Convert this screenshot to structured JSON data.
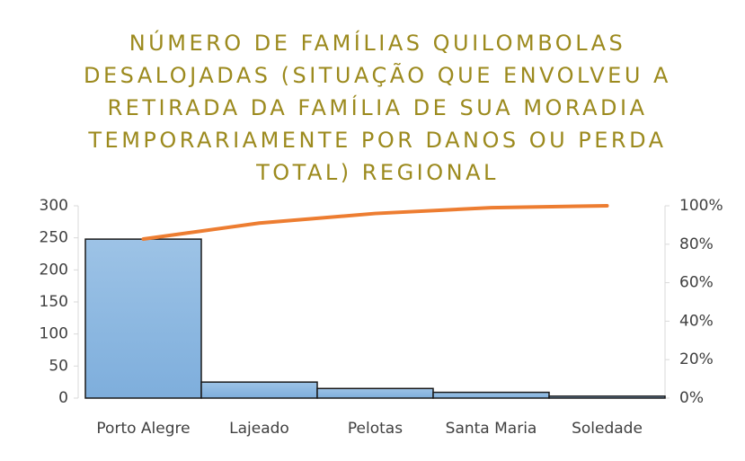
{
  "chart_data": {
    "type": "pareto",
    "title": "NÚMERO DE FAMÍLIAS QUILOMBOLAS DESALOJADAS (SITUAÇÃO QUE ENVOLVEU A RETIRADA DA FAMÍLIA DE SUA MORADIA TEMPORARIAMENTE POR DANOS OU PERDA TOTAL) REGIONAL",
    "categories": [
      "Porto Alegre",
      "Lajeado",
      "Pelotas",
      "Santa Maria",
      "Soledade"
    ],
    "series": [
      {
        "type": "bar",
        "color": "#9dc3e6",
        "values": [
          248,
          25,
          15,
          9,
          3
        ]
      },
      {
        "type": "line",
        "color": "#ed7d31",
        "axis": "y2",
        "values": [
          82.7,
          91,
          96,
          99,
          100
        ]
      }
    ],
    "ylim": [
      0,
      300
    ],
    "yticks": [
      0,
      50,
      100,
      150,
      200,
      250,
      300
    ],
    "y2lim": [
      0,
      100
    ],
    "y2ticks": [
      {
        "value": 0,
        "label": "0%"
      },
      {
        "value": 20,
        "label": "20%"
      },
      {
        "value": 40,
        "label": "40%"
      },
      {
        "value": 60,
        "label": "60%"
      },
      {
        "value": 80,
        "label": "80%"
      },
      {
        "value": 100,
        "label": "100%"
      }
    ]
  }
}
